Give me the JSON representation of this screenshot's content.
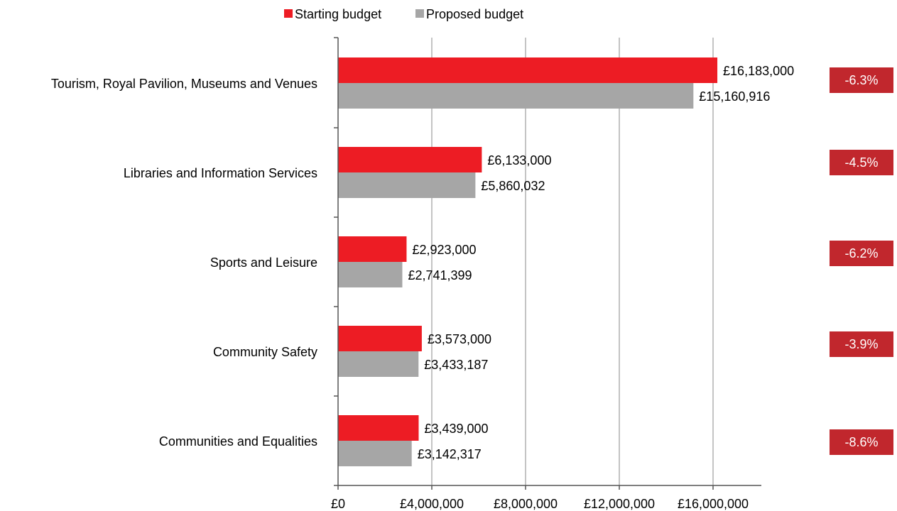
{
  "chart_data": {
    "type": "bar",
    "orientation": "horizontal",
    "categories": [
      "Tourism, Royal Pavilion, Museums and Venues",
      "Libraries and Information Services",
      "Sports and Leisure",
      "Community Safety",
      "Communities and Equalities"
    ],
    "series": [
      {
        "name": "Starting budget",
        "color": "#ed1c24",
        "values": [
          16183000,
          6133000,
          2923000,
          3573000,
          3439000
        ],
        "labels": [
          "£16,183,000",
          "£6,133,000",
          "£2,923,000",
          "£3,573,000",
          "£3,439,000"
        ]
      },
      {
        "name": "Proposed budget",
        "color": "#a6a6a6",
        "values": [
          15160916,
          5860032,
          2741399,
          3433187,
          3142317
        ],
        "labels": [
          "£15,160,916",
          "£5,860,032",
          "£2,741,399",
          "£3,433,187",
          "£3,142,317"
        ]
      }
    ],
    "change_labels": [
      "-6.3%",
      "-4.5%",
      "-6.2%",
      "-3.9%",
      "-8.6%"
    ],
    "change_badge_color": "#c1272d",
    "xlim": [
      0,
      18000000
    ],
    "xticks": [
      0,
      4000000,
      8000000,
      12000000,
      16000000
    ],
    "xtick_labels": [
      "£0",
      "£4,000,000",
      "£8,000,000",
      "£12,000,000",
      "£16,000,000"
    ],
    "title": "",
    "xlabel": "",
    "ylabel": "",
    "grid": "vertical",
    "legend_position": "top"
  }
}
